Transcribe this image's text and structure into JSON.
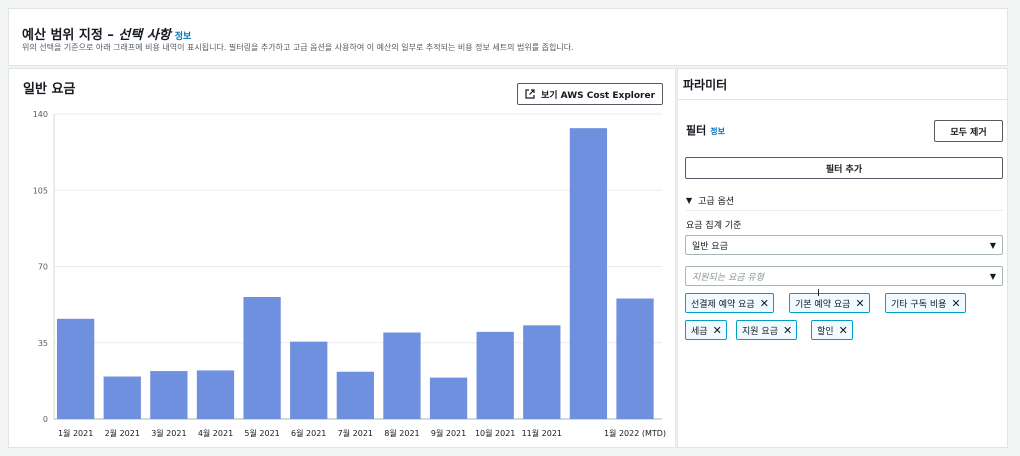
{
  "header": {
    "title": "예산 범위 지정 – ",
    "title_italic": "선택 사항",
    "info": "정보",
    "description": "위의 선택을 기준으로 아래 그래프에 비용 내역이 표시됩니다. 필터링을 추가하고 고급 옵션을 사용하여 이 예산의 일부로 추적되는 비용 정보 세트의 범위를 좁힙니다."
  },
  "chart_panel": {
    "title": "일반 요금",
    "explorer_button": "보기 AWS Cost Explorer",
    "explorer_icon": "external-link-icon"
  },
  "chart_data": {
    "type": "bar",
    "categories": [
      "1월 2021",
      "2월 2021",
      "3월 2021",
      "4월 2021",
      "5월 2021",
      "6월 2021",
      "7월 2021",
      "8월 2021",
      "9월 2021",
      "10월 2021",
      "11월 2021",
      "",
      "1월 2022 (MTD)"
    ],
    "values": [
      46,
      19.5,
      22,
      22.3,
      56,
      35.5,
      21.7,
      39.7,
      19,
      40,
      43,
      133.5,
      55.3
    ],
    "yticks": [
      0,
      35,
      70,
      105,
      140
    ],
    "ylim": [
      0,
      140
    ],
    "bar_color": "#6f8fdf",
    "grid": true
  },
  "parameters": {
    "title": "파라미터",
    "filter_label": "필터",
    "filter_info": "정보",
    "clear_button": "모두 제거",
    "add_filter_button": "필터 추가",
    "advanced_label": "고급 옵션",
    "aggregate_label": "요금 집계 기준",
    "aggregate_value": "일반 요금",
    "charge_type_placeholder": "지원되는 요금 유형",
    "tokens": [
      {
        "label": "선결제 예약 요금"
      },
      {
        "label": "기본 예약 요금"
      },
      {
        "label": "기타 구독 비용"
      },
      {
        "label": "세금"
      },
      {
        "label": "지원 요금"
      },
      {
        "label": "할인"
      }
    ]
  }
}
